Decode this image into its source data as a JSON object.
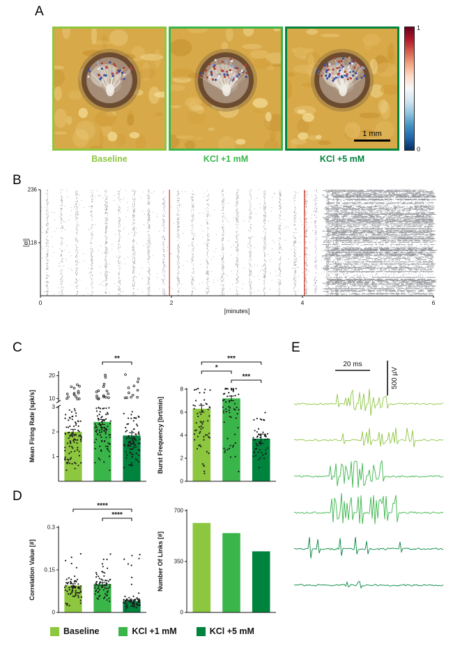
{
  "panel_labels": {
    "a": "A",
    "b": "B",
    "c": "C",
    "d": "D",
    "e": "E"
  },
  "colors": {
    "baseline": "#8dc63f",
    "kcl1": "#3ab54a",
    "kcl5": "#00843d",
    "red_line": "#d93a2b",
    "raster_dot": "#30343b"
  },
  "panel_a": {
    "conditions": [
      {
        "label": "Baseline",
        "color": "#8dc63f",
        "nodes": 42,
        "seed": 7
      },
      {
        "label": "KCl +1 mM",
        "color": "#3ab54a",
        "nodes": 58,
        "seed": 19
      },
      {
        "label": "KCl +5 mM",
        "color": "#00843d",
        "nodes": 86,
        "seed": 33
      }
    ],
    "scale_bar_label": "1 mm",
    "colorbar": {
      "max_label": "1",
      "min_label": "0",
      "gradient": [
        "#67001f",
        "#b2182b",
        "#d6604d",
        "#f4a582",
        "#fddbc7",
        "#f7f7f7",
        "#d1e5f0",
        "#92c5de",
        "#4393c3",
        "#2166ac",
        "#053061"
      ]
    }
  },
  "chart_data": [
    {
      "id": "raster",
      "type": "scatter",
      "xlabel": "[minutes]",
      "ylabel": "[el]",
      "xlim": [
        0,
        6
      ],
      "ylim": [
        0,
        236
      ],
      "xticks": [
        0,
        2,
        4,
        6
      ],
      "yticks": [
        118,
        236
      ],
      "n_electrodes": 236,
      "burst_times_min": [
        0.1,
        0.32,
        0.55,
        0.78,
        1.0,
        1.2,
        1.42,
        1.65,
        1.88,
        2.1,
        2.32,
        2.55,
        2.78,
        3.0,
        3.2,
        3.42,
        3.65,
        3.88,
        4.05,
        4.2
      ],
      "strong_burst_times_min": [
        4.38,
        4.52
      ],
      "kcl_marker_times_min": [
        1.97,
        4.03
      ],
      "dense_activity_from_min": 4.35
    },
    {
      "id": "mean-firing-rate",
      "type": "bar",
      "categories": [
        "Baseline",
        "KCl +1 mM",
        "KCl +5 mM"
      ],
      "values": [
        2.0,
        2.4,
        1.85
      ],
      "errors": [
        0.1,
        0.1,
        0.12
      ],
      "ylabel": "Mean Firing Rate [spk/s]",
      "axis_break": {
        "lower_ticks": [
          1,
          2,
          3
        ],
        "upper_ticks": [
          10,
          20
        ],
        "lower_lim": [
          0,
          3
        ],
        "upper_lim": [
          9,
          22
        ]
      },
      "significance": [
        {
          "a": 1,
          "b": 2,
          "label": "**",
          "level": 0
        }
      ],
      "scatter": {
        "n": [
          88,
          88,
          88
        ],
        "max": 2.95,
        "outlier_n": [
          14,
          16,
          12
        ]
      }
    },
    {
      "id": "burst-frequency",
      "type": "bar",
      "categories": [
        "Baseline",
        "KCl +1 mM",
        "KCl +5 mM"
      ],
      "values": [
        6.3,
        7.2,
        3.7
      ],
      "errors": [
        0.3,
        0.2,
        0.4
      ],
      "ylabel": "Burst Frequency [brt/min]",
      "ylim": [
        0,
        8
      ],
      "yticks": [
        0,
        2,
        4,
        6,
        8
      ],
      "significance": [
        {
          "a": 0,
          "b": 2,
          "label": "***",
          "level": 0
        },
        {
          "a": 0,
          "b": 1,
          "label": "*",
          "level": 1
        },
        {
          "a": 1,
          "b": 2,
          "label": "***",
          "level": 2
        }
      ],
      "scatter": {
        "n": [
          60,
          60,
          52
        ],
        "max": 8
      }
    },
    {
      "id": "correlation-value",
      "type": "bar",
      "categories": [
        "Baseline",
        "KCl +1 mM",
        "KCl +5 mM"
      ],
      "values": [
        0.095,
        0.1,
        0.04
      ],
      "errors": [
        0.006,
        0.006,
        0.004
      ],
      "ylabel": "Correlation Value [#]",
      "ylim": [
        0,
        0.3
      ],
      "yticks": [
        0,
        0.15,
        0.3
      ],
      "significance": [
        {
          "a": 0,
          "b": 2,
          "label": "****",
          "level": 0
        },
        {
          "a": 1,
          "b": 2,
          "label": "****",
          "level": 1
        }
      ],
      "scatter": {
        "n": [
          72,
          72,
          72
        ],
        "max": 0.22
      }
    },
    {
      "id": "number-of-links",
      "type": "bar",
      "categories": [
        "Baseline",
        "KCl +1 mM",
        "KCl +5 mM"
      ],
      "values": [
        615,
        545,
        420
      ],
      "errors": null,
      "ylabel": "Number Of Links [#]",
      "ylim": [
        0,
        700
      ],
      "yticks": [
        0,
        350,
        700
      ],
      "significance": [],
      "scatter": null
    }
  ],
  "panel_e": {
    "time_scale_label": "20 ms",
    "voltage_scale_label": "500 µV",
    "traces": [
      {
        "condition": "Baseline",
        "color": "#8dc63f",
        "seed": 41,
        "burst": [
          0.28,
          0.62
        ],
        "n_spikes": 20,
        "max_amp": 22
      },
      {
        "condition": "Baseline",
        "color": "#8dc63f",
        "seed": 42,
        "burst": [
          0.3,
          0.8
        ],
        "n_spikes": 15,
        "max_amp": 18
      },
      {
        "condition": "KCl +1 mM",
        "color": "#3ab54a",
        "seed": 43,
        "burst": [
          0.22,
          0.6
        ],
        "n_spikes": 26,
        "max_amp": 24
      },
      {
        "condition": "KCl +1 mM",
        "color": "#3ab54a",
        "seed": 44,
        "burst": [
          0.22,
          0.68
        ],
        "n_spikes": 36,
        "max_amp": 28
      },
      {
        "condition": "KCl +5 mM",
        "color": "#00843d",
        "seed": 45,
        "burst": [
          0.1,
          0.92
        ],
        "n_spikes": 6,
        "max_amp": 18
      },
      {
        "condition": "KCl +5 mM",
        "color": "#00843d",
        "seed": 46,
        "burst": [
          0.25,
          0.85
        ],
        "n_spikes": 3,
        "max_amp": 7
      }
    ]
  },
  "legend": {
    "items": [
      {
        "label": "Baseline",
        "color": "#8dc63f"
      },
      {
        "label": "KCl +1 mM",
        "color": "#3ab54a"
      },
      {
        "label": "KCl +5 mM",
        "color": "#00843d"
      }
    ]
  }
}
